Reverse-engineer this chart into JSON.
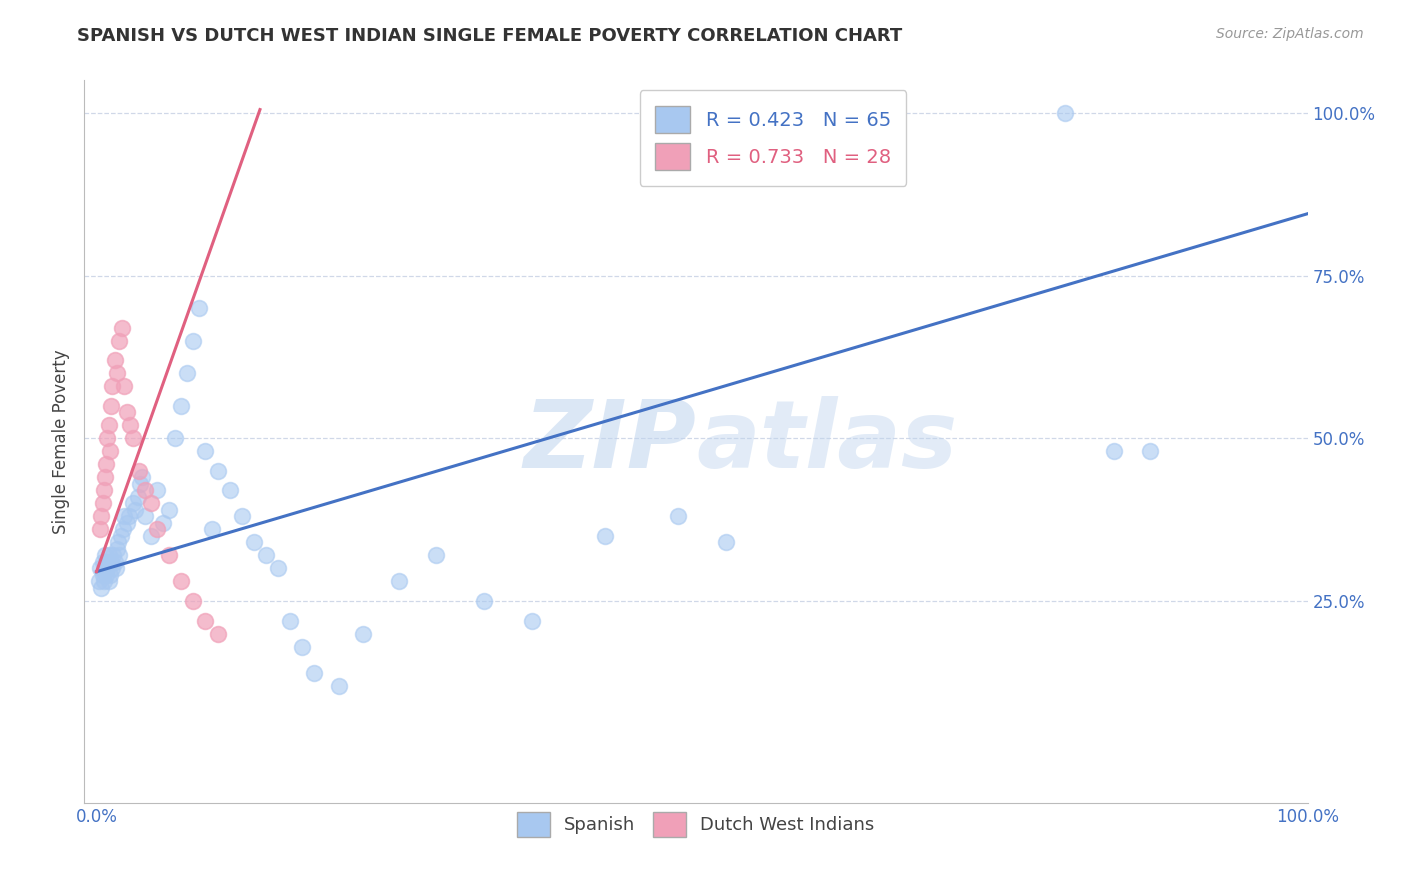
{
  "title": "SPANISH VS DUTCH WEST INDIAN SINGLE FEMALE POVERTY CORRELATION CHART",
  "source": "Source: ZipAtlas.com",
  "ylabel": "Single Female Poverty",
  "blue_color": "#A8C8F0",
  "pink_color": "#F0A0B8",
  "blue_line_color": "#4472C4",
  "pink_line_color": "#E06080",
  "blue_R": 0.423,
  "blue_N": 65,
  "pink_R": 0.733,
  "pink_N": 28,
  "background_color": "#FFFFFF",
  "grid_color": "#D0D8E8",
  "spanish_x": [
    0.002,
    0.003,
    0.004,
    0.005,
    0.005,
    0.006,
    0.007,
    0.007,
    0.008,
    0.008,
    0.009,
    0.01,
    0.01,
    0.011,
    0.012,
    0.013,
    0.014,
    0.015,
    0.016,
    0.017,
    0.018,
    0.019,
    0.02,
    0.022,
    0.023,
    0.025,
    0.027,
    0.03,
    0.032,
    0.034,
    0.036,
    0.038,
    0.04,
    0.045,
    0.05,
    0.055,
    0.06,
    0.065,
    0.07,
    0.075,
    0.08,
    0.085,
    0.09,
    0.095,
    0.1,
    0.11,
    0.12,
    0.13,
    0.14,
    0.15,
    0.16,
    0.17,
    0.18,
    0.2,
    0.22,
    0.25,
    0.28,
    0.32,
    0.36,
    0.42,
    0.48,
    0.52,
    0.8,
    0.84,
    0.87
  ],
  "spanish_y": [
    0.28,
    0.3,
    0.27,
    0.29,
    0.31,
    0.28,
    0.3,
    0.32,
    0.29,
    0.31,
    0.3,
    0.28,
    0.32,
    0.29,
    0.31,
    0.3,
    0.32,
    0.31,
    0.3,
    0.33,
    0.34,
    0.32,
    0.35,
    0.36,
    0.38,
    0.37,
    0.38,
    0.4,
    0.39,
    0.41,
    0.43,
    0.44,
    0.38,
    0.35,
    0.42,
    0.37,
    0.39,
    0.5,
    0.55,
    0.6,
    0.65,
    0.7,
    0.48,
    0.36,
    0.45,
    0.42,
    0.38,
    0.34,
    0.32,
    0.3,
    0.22,
    0.18,
    0.14,
    0.12,
    0.2,
    0.28,
    0.32,
    0.25,
    0.22,
    0.35,
    0.38,
    0.34,
    1.0,
    0.48,
    0.48
  ],
  "dutch_x": [
    0.003,
    0.004,
    0.005,
    0.006,
    0.007,
    0.008,
    0.009,
    0.01,
    0.011,
    0.012,
    0.013,
    0.015,
    0.017,
    0.019,
    0.021,
    0.023,
    0.025,
    0.028,
    0.03,
    0.035,
    0.04,
    0.045,
    0.05,
    0.06,
    0.07,
    0.08,
    0.09,
    0.1
  ],
  "dutch_y": [
    0.36,
    0.38,
    0.4,
    0.42,
    0.44,
    0.46,
    0.5,
    0.52,
    0.48,
    0.55,
    0.58,
    0.62,
    0.6,
    0.65,
    0.67,
    0.58,
    0.54,
    0.52,
    0.5,
    0.45,
    0.42,
    0.4,
    0.36,
    0.32,
    0.28,
    0.25,
    0.22,
    0.2
  ],
  "xlim": [
    -0.01,
    1.0
  ],
  "ylim": [
    -0.06,
    1.05
  ],
  "blue_line_x": [
    0.0,
    1.0
  ],
  "blue_line_y": [
    0.295,
    0.845
  ],
  "pink_line_x": [
    0.0,
    0.135
  ],
  "pink_line_y": [
    0.295,
    1.005
  ]
}
